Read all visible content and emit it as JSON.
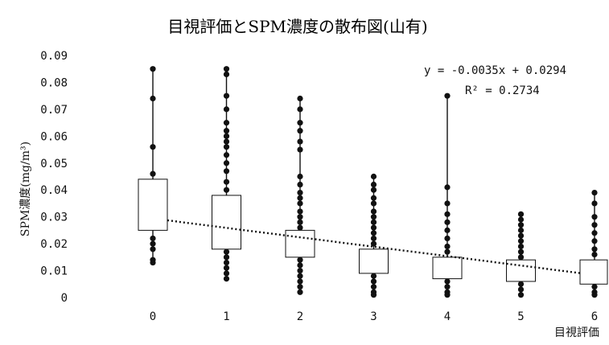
{
  "chart_data": {
    "type": "box",
    "title": "目視評価とSPM濃度の散布図(山有)",
    "xlabel": "目視評価",
    "ylabel": "SPM濃度(mg/m³)",
    "ylim": [
      0,
      0.09
    ],
    "yticks": [
      "0",
      "0.01",
      "0.02",
      "0.03",
      "0.04",
      "0.05",
      "0.06",
      "0.07",
      "0.08",
      "0.09"
    ],
    "categories": [
      "0",
      "1",
      "2",
      "3",
      "4",
      "5",
      "6"
    ],
    "boxes": [
      {
        "category": "0",
        "min": 0.012,
        "q1": 0.025,
        "q3": 0.044,
        "max": 0.085
      },
      {
        "category": "1",
        "min": 0.007,
        "q1": 0.018,
        "q3": 0.038,
        "max": 0.085
      },
      {
        "category": "2",
        "min": 0.002,
        "q1": 0.015,
        "q3": 0.025,
        "max": 0.074
      },
      {
        "category": "3",
        "min": 0.001,
        "q1": 0.009,
        "q3": 0.018,
        "max": 0.045
      },
      {
        "category": "4",
        "min": 0.001,
        "q1": 0.007,
        "q3": 0.015,
        "max": 0.075
      },
      {
        "category": "5",
        "min": 0.001,
        "q1": 0.006,
        "q3": 0.014,
        "max": 0.031
      },
      {
        "category": "6",
        "min": 0.001,
        "q1": 0.005,
        "q3": 0.014,
        "max": 0.039
      }
    ],
    "points": [
      {
        "category": "0",
        "values": [
          0.085,
          0.074,
          0.056,
          0.046,
          0.022,
          0.02,
          0.018,
          0.014,
          0.013
        ]
      },
      {
        "category": "1",
        "values": [
          0.085,
          0.083,
          0.075,
          0.07,
          0.065,
          0.062,
          0.06,
          0.058,
          0.056,
          0.053,
          0.05,
          0.047,
          0.043,
          0.04,
          0.017,
          0.015,
          0.013,
          0.011,
          0.009,
          0.007
        ]
      },
      {
        "category": "2",
        "values": [
          0.074,
          0.07,
          0.065,
          0.062,
          0.058,
          0.055,
          0.045,
          0.042,
          0.039,
          0.037,
          0.035,
          0.032,
          0.03,
          0.028,
          0.026,
          0.014,
          0.012,
          0.01,
          0.008,
          0.006,
          0.004,
          0.002
        ]
      },
      {
        "category": "3",
        "values": [
          0.045,
          0.042,
          0.04,
          0.037,
          0.035,
          0.032,
          0.03,
          0.028,
          0.026,
          0.024,
          0.022,
          0.02,
          0.008,
          0.006,
          0.004,
          0.002,
          0.001
        ]
      },
      {
        "category": "4",
        "values": [
          0.075,
          0.041,
          0.035,
          0.031,
          0.028,
          0.025,
          0.022,
          0.019,
          0.017,
          0.006,
          0.004,
          0.002,
          0.001
        ]
      },
      {
        "category": "5",
        "values": [
          0.031,
          0.029,
          0.027,
          0.025,
          0.023,
          0.021,
          0.019,
          0.017,
          0.015,
          0.005,
          0.003,
          0.001
        ]
      },
      {
        "category": "6",
        "values": [
          0.039,
          0.035,
          0.03,
          0.027,
          0.024,
          0.021,
          0.018,
          0.016,
          0.004,
          0.002,
          0.001
        ]
      }
    ],
    "trendline": {
      "slope": -0.0035,
      "intercept": 0.0294,
      "x_values": [
        0,
        6
      ],
      "style": "dotted"
    },
    "equation_text": "y = -0.0035x + 0.0294",
    "r2_text": "R² = 0.2734",
    "colors": {
      "points": "#111111",
      "box_fill": "#ffffff",
      "box_stroke": "#111111",
      "trend": "#111111"
    }
  }
}
